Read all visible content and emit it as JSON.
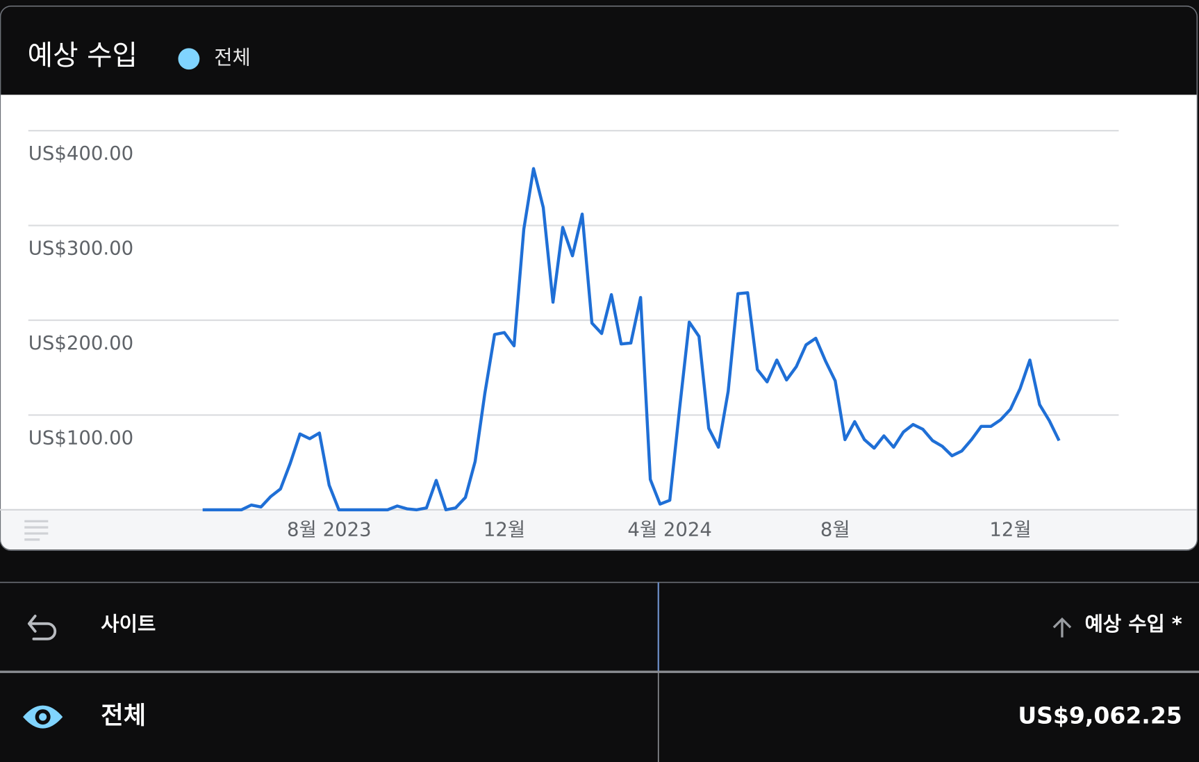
{
  "chart_data": {
    "type": "line",
    "title": "예상 수입",
    "categories": [
      null,
      null,
      null,
      null,
      null,
      null,
      null,
      null,
      null,
      null,
      null,
      null,
      null,
      "8월 2023",
      null,
      null,
      null,
      null,
      null,
      null,
      null,
      null,
      null,
      null,
      null,
      null,
      null,
      null,
      null,
      null,
      null,
      "12월",
      null,
      null,
      null,
      null,
      null,
      null,
      null,
      null,
      null,
      null,
      null,
      null,
      null,
      null,
      null,
      null,
      "4월 2024",
      null,
      null,
      null,
      null,
      null,
      null,
      null,
      null,
      null,
      null,
      null,
      null,
      null,
      null,
      null,
      null,
      "8월",
      null,
      null,
      null,
      null,
      null,
      null,
      null,
      null,
      null,
      null,
      null,
      null,
      null,
      null,
      null,
      null,
      null,
      "12월",
      null,
      null,
      null,
      null,
      null
    ],
    "series": [
      {
        "name": "전체",
        "color": "#1f6fd6",
        "legend_color": "#80d4ff",
        "values": [
          0,
          0,
          0,
          0,
          0,
          5,
          3,
          14,
          22,
          49,
          80,
          75,
          81,
          26,
          0,
          0,
          0,
          0,
          0,
          0,
          4,
          1,
          0,
          2,
          31,
          0,
          2,
          13,
          51,
          123,
          185,
          187,
          173,
          296,
          360,
          319,
          219,
          298,
          268,
          312,
          197,
          186,
          227,
          175,
          176,
          224,
          32,
          6,
          10,
          106,
          198,
          183,
          86,
          66,
          125,
          228,
          229,
          148,
          135,
          158,
          137,
          151,
          174,
          181,
          157,
          136,
          74,
          93,
          74,
          65,
          78,
          66,
          82,
          90,
          85,
          73,
          67,
          57,
          62,
          74,
          88,
          88,
          95,
          106,
          128,
          158,
          111,
          94,
          73
        ]
      }
    ],
    "ylim": [
      0,
      400
    ],
    "yticks": [
      {
        "value": 100,
        "label": "US$100.00"
      },
      {
        "value": 200,
        "label": "US$200.00"
      },
      {
        "value": 300,
        "label": "US$300.00"
      },
      {
        "value": 400,
        "label": "US$400.00"
      }
    ],
    "grid": true
  },
  "table": {
    "headers": [
      "사이트",
      "예상 수입 *"
    ],
    "rows": [
      [
        "전체",
        "US$9,062.25"
      ]
    ]
  }
}
